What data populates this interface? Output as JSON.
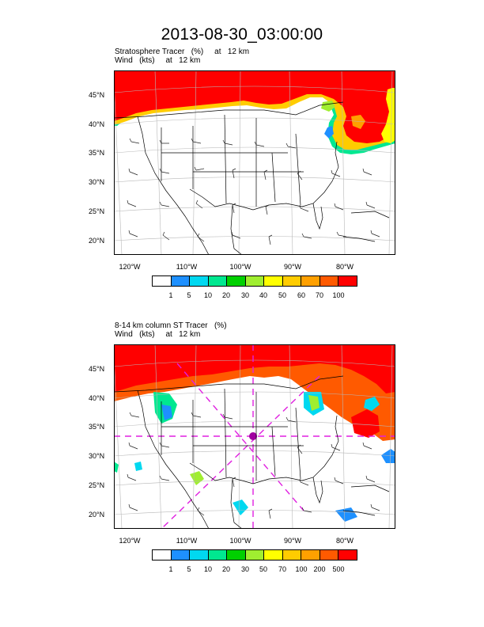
{
  "main_title": "2013-08-30_03:00:00",
  "panels": [
    {
      "title_line1": "Stratosphere Tracer   (%)     at   12 km",
      "title_line2": "Wind   (kts)     at   12 km",
      "lat_labels": [
        "45°N",
        "40°N",
        "35°N",
        "30°N",
        "25°N",
        "20°N"
      ],
      "lon_labels": [
        "120°W",
        "110°W",
        "100°W",
        "90°W",
        "80°W"
      ],
      "colorbar_labels": [
        "1",
        "5",
        "10",
        "20",
        "30",
        "40",
        "50",
        "60",
        "70",
        "100"
      ]
    },
    {
      "title_line1": "8-14 km column ST Tracer   (%)",
      "title_line2": "Wind   (kts)     at   12 km",
      "lat_labels": [
        "45°N",
        "40°N",
        "35°N",
        "30°N",
        "25°N",
        "20°N"
      ],
      "lon_labels": [
        "120°W",
        "110°W",
        "100°W",
        "90°W",
        "80°W"
      ],
      "colorbar_labels": [
        "1",
        "5",
        "10",
        "20",
        "30",
        "50",
        "70",
        "100",
        "200",
        "500"
      ]
    }
  ],
  "colorbar_colors": [
    "#ffffff",
    "#1e90ff",
    "#00d8f0",
    "#00e890",
    "#00d000",
    "#a0ee30",
    "#ffff00",
    "#ffcc00",
    "#ffa000",
    "#ff5a00",
    "#ff0000"
  ]
}
